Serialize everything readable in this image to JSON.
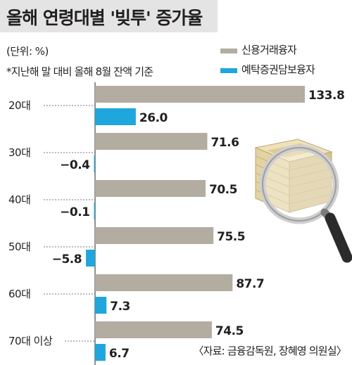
{
  "header": {
    "title": "올해 연령대별 '빚투' 증가율",
    "unit": "(단위: %)",
    "note": "*지난해 말 대비 올해 8월 잔액 기준"
  },
  "legend": [
    {
      "label": "신용거래융자",
      "color": "#b3aca0"
    },
    {
      "label": "예탁증권담보융자",
      "color": "#1fa6dc"
    }
  ],
  "source": "〈자료: 금융감독원, 장혜영 의원실〉",
  "decoration": {
    "icon": "money-stack-magnifier-icon"
  },
  "chart_data": {
    "type": "bar",
    "orientation": "horizontal",
    "title": "올해 연령대별 '빚투' 증가율",
    "categories": [
      "20대",
      "30대",
      "40대",
      "50대",
      "60대",
      "70대 이상"
    ],
    "series": [
      {
        "name": "신용거래융자",
        "color": "#b3aca0",
        "values": [
          133.8,
          71.6,
          70.5,
          75.5,
          87.7,
          74.5
        ],
        "labels": [
          "133.8",
          "71.6",
          "70.5",
          "75.5",
          "87.7",
          "74.5"
        ]
      },
      {
        "name": "예탁증권담보융자",
        "color": "#1fa6dc",
        "values": [
          26.0,
          -0.4,
          -0.1,
          -5.8,
          7.3,
          6.7
        ],
        "labels": [
          "26.0",
          "−0.4",
          "−0.1",
          "−5.8",
          "7.3",
          "6.7"
        ]
      }
    ],
    "xlim": [
      -5.8,
      133.8
    ],
    "grid": false,
    "legend": "top-right"
  }
}
